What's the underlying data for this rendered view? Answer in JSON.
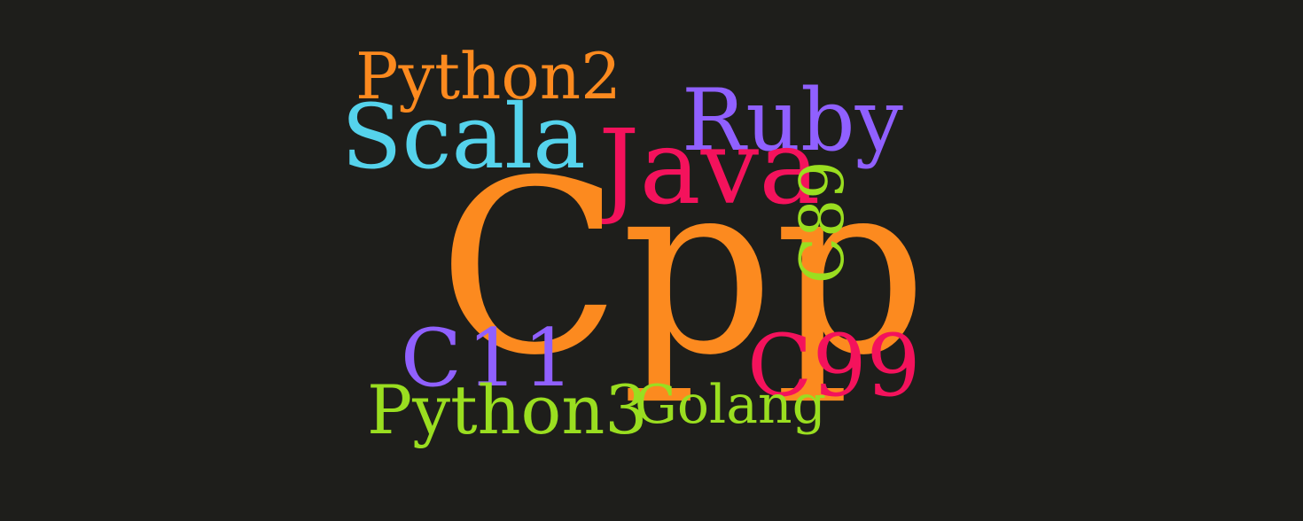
{
  "background": "#1e1e1b",
  "words": {
    "python2": {
      "text": "Python2",
      "color": "#fc8a1f"
    },
    "scala": {
      "text": "Scala",
      "color": "#55d3ec"
    },
    "ruby": {
      "text": "Ruby",
      "color": "#9060ff"
    },
    "java": {
      "text": "Java",
      "color": "#f4125c"
    },
    "cpp": {
      "text": "Cpp",
      "color": "#fc8a1f"
    },
    "c89": {
      "text": "C89",
      "color": "#9ade20"
    },
    "c11": {
      "text": "C11",
      "color": "#9060ff"
    },
    "c99": {
      "text": "C99",
      "color": "#f4125c"
    },
    "python3": {
      "text": "Python3",
      "color": "#9ade20"
    },
    "golang": {
      "text": "Golang",
      "color": "#9ade20"
    }
  }
}
